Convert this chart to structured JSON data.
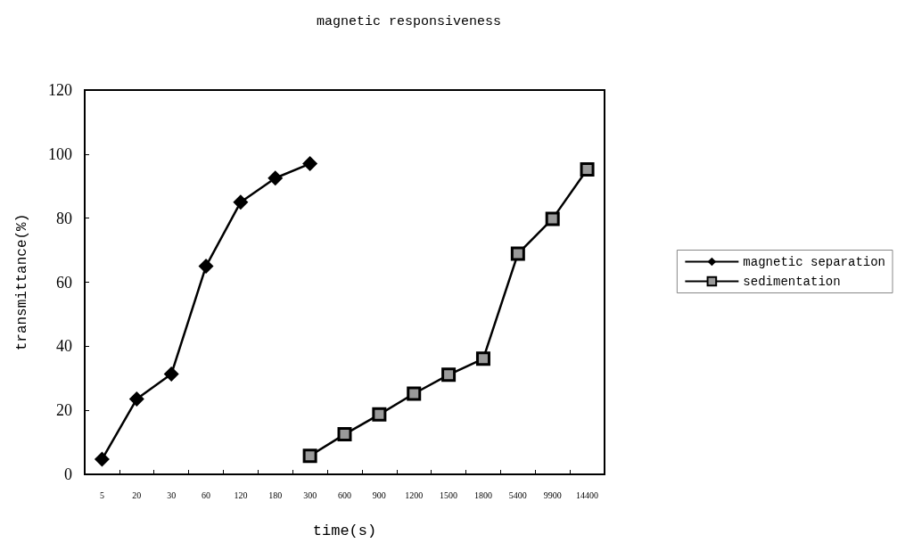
{
  "chart_data": {
    "type": "line",
    "title": "magnetic responsiveness",
    "xlabel": "time(s)",
    "ylabel": "transmittance(%)",
    "categories": [
      "5",
      "20",
      "30",
      "60",
      "120",
      "180",
      "300",
      "600",
      "900",
      "1200",
      "1500",
      "1800",
      "5400",
      "9900",
      "14400"
    ],
    "series": [
      {
        "name": "magnetic separation",
        "color": "#000000",
        "marker": "diamond",
        "values": [
          4.7,
          23.5,
          31.3,
          65,
          85,
          92.5,
          97,
          null,
          null,
          null,
          null,
          null,
          null,
          null,
          null
        ]
      },
      {
        "name": "sedimentation",
        "color": "#000000",
        "marker": "square",
        "values": [
          null,
          null,
          null,
          null,
          null,
          null,
          5.8,
          12.5,
          18.7,
          25.2,
          31.1,
          36.1,
          68.9,
          79.8,
          95.2
        ]
      }
    ],
    "ylim": [
      0,
      120
    ],
    "yticks": [
      0,
      20,
      40,
      60,
      80,
      100,
      120
    ],
    "grid": false,
    "legend": "right",
    "line_style": "solid"
  }
}
